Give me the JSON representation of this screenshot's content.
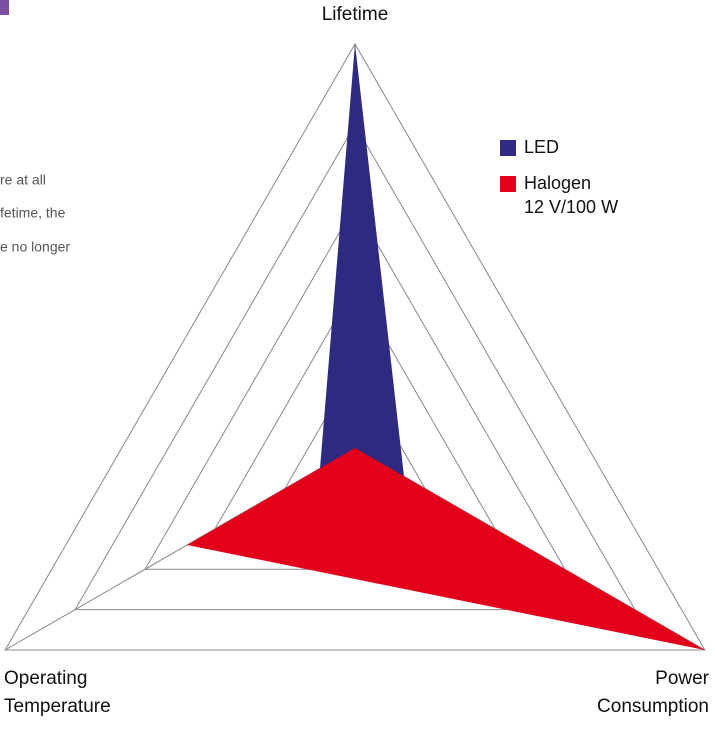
{
  "side_text": [
    "re at all",
    "fetime, the",
    "e no longer"
  ],
  "chart_data": {
    "type": "radar",
    "categories": [
      "Lifetime",
      "Power Consumption",
      "Operating Temperature"
    ],
    "ylim": [
      0,
      5
    ],
    "yticks": [
      1,
      2,
      3,
      4,
      5
    ],
    "grid": true,
    "series": [
      {
        "name": "LED",
        "color": "#2e2a7f",
        "values": [
          5,
          0.7,
          0.5
        ]
      },
      {
        "name": "Halogen 12 V/100 W",
        "color": "#e2001a",
        "values": [
          0,
          5,
          2.4
        ]
      }
    ]
  }
}
